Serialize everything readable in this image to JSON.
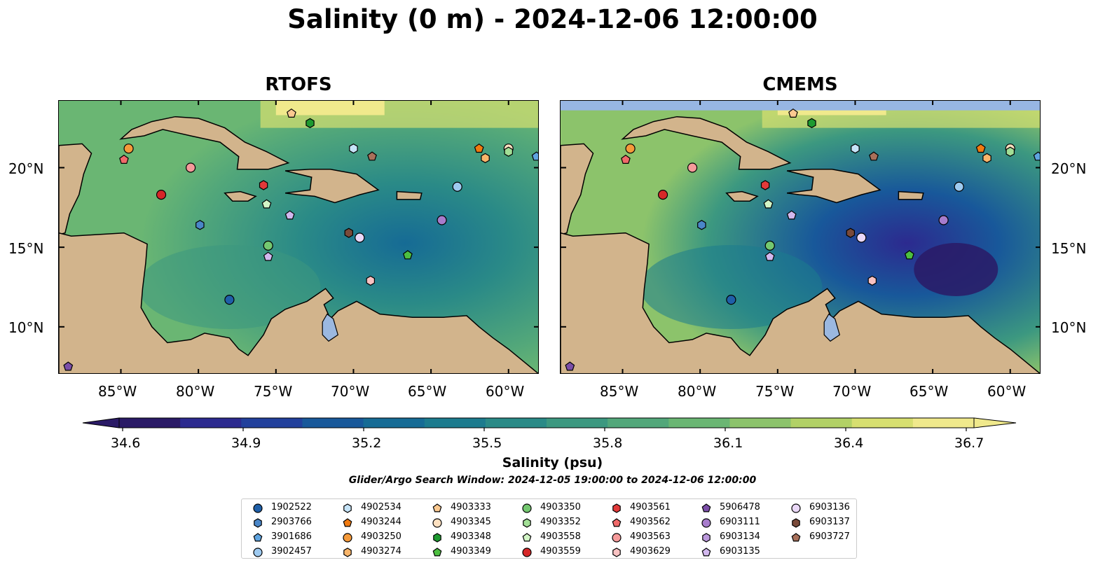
{
  "title": "Salinity (0 m) - 2024-12-06 12:00:00",
  "panels": [
    {
      "title": "RTOFS",
      "dark_region": "east"
    },
    {
      "title": "CMEMS",
      "dark_region": "east"
    }
  ],
  "map": {
    "lon_range": [
      -89,
      -58
    ],
    "lat_range": [
      7,
      24.2
    ],
    "x_ticks": [
      "85°W",
      "80°W",
      "75°W",
      "70°W",
      "65°W",
      "60°W"
    ],
    "y_ticks": [
      "20°N",
      "15°N",
      "10°N"
    ],
    "land_color": "#d2b48c",
    "lake_color": "#9bb8e0"
  },
  "colorbar": {
    "ticks": [
      "34.6",
      "34.9",
      "35.2",
      "35.5",
      "35.8",
      "36.1",
      "36.4",
      "36.7"
    ],
    "label": "Salinity (psu)",
    "colors": [
      "#2a1a66",
      "#2c2a8f",
      "#22409c",
      "#18589a",
      "#166b95",
      "#1c7b8e",
      "#2a8a87",
      "#3c9880",
      "#52a77a",
      "#6ab673",
      "#8cc36b",
      "#b2d166",
      "#d7df70",
      "#f0e98c"
    ]
  },
  "window_text": "Glider/Argo Search Window: 2024-12-05 19:00:00 to 2024-12-06 12:00:00",
  "legend": [
    {
      "id": "1902522",
      "shape": "circle",
      "color": "#1f5fa8"
    },
    {
      "id": "2903766",
      "shape": "hexagon",
      "color": "#4a86c8"
    },
    {
      "id": "3901686",
      "shape": "pentagon",
      "color": "#5fa4e0"
    },
    {
      "id": "3902457",
      "shape": "circle",
      "color": "#9ecaf0"
    },
    {
      "id": "4902534",
      "shape": "hexagon",
      "color": "#c6e4f8"
    },
    {
      "id": "4903244",
      "shape": "pentagon",
      "color": "#f07a10"
    },
    {
      "id": "4903250",
      "shape": "circle",
      "color": "#f59a3a"
    },
    {
      "id": "4903274",
      "shape": "hexagon",
      "color": "#f8b56a"
    },
    {
      "id": "4903333",
      "shape": "pentagon",
      "color": "#fbc990"
    },
    {
      "id": "4903345",
      "shape": "circle",
      "color": "#fde0c0"
    },
    {
      "id": "4903348",
      "shape": "hexagon",
      "color": "#1e9a30"
    },
    {
      "id": "4903349",
      "shape": "pentagon",
      "color": "#4cbf40"
    },
    {
      "id": "4903350",
      "shape": "circle",
      "color": "#74c870"
    },
    {
      "id": "4903352",
      "shape": "hexagon",
      "color": "#a2df96"
    },
    {
      "id": "4903558",
      "shape": "pentagon",
      "color": "#d2f5c6"
    },
    {
      "id": "4903559",
      "shape": "circle",
      "color": "#d62728"
    },
    {
      "id": "4903561",
      "shape": "hexagon",
      "color": "#e23a3a"
    },
    {
      "id": "4903562",
      "shape": "pentagon",
      "color": "#f06a6a"
    },
    {
      "id": "4903563",
      "shape": "circle",
      "color": "#f59a9a"
    },
    {
      "id": "4903629",
      "shape": "hexagon",
      "color": "#f8c2c2"
    },
    {
      "id": "5906478",
      "shape": "pentagon",
      "color": "#7b4ea8"
    },
    {
      "id": "6903111",
      "shape": "circle",
      "color": "#a77ccc"
    },
    {
      "id": "6903134",
      "shape": "hexagon",
      "color": "#bb98dc"
    },
    {
      "id": "6903135",
      "shape": "pentagon",
      "color": "#d2b8ee"
    },
    {
      "id": "6903136",
      "shape": "circle",
      "color": "#ead8f8"
    },
    {
      "id": "6903137",
      "shape": "hexagon",
      "color": "#7a4a3a"
    },
    {
      "id": "6903727",
      "shape": "pentagon",
      "color": "#a8705a"
    }
  ],
  "floats": [
    {
      "lon": -84.5,
      "lat": 21.2,
      "shape": "circle",
      "color": "#f59a3a"
    },
    {
      "lon": -84.8,
      "lat": 20.5,
      "shape": "pentagon",
      "color": "#f06a6a"
    },
    {
      "lon": -80.5,
      "lat": 20.0,
      "shape": "circle",
      "color": "#f59a9a"
    },
    {
      "lon": -82.4,
      "lat": 18.3,
      "shape": "circle",
      "color": "#d62728"
    },
    {
      "lon": -79.9,
      "lat": 16.4,
      "shape": "hexagon",
      "color": "#4a86c8"
    },
    {
      "lon": -78.0,
      "lat": 11.7,
      "shape": "circle",
      "color": "#1f5fa8"
    },
    {
      "lon": -74.0,
      "lat": 23.4,
      "shape": "pentagon",
      "color": "#fbc990"
    },
    {
      "lon": -72.8,
      "lat": 22.8,
      "shape": "hexagon",
      "color": "#1e9a30"
    },
    {
      "lon": -70.0,
      "lat": 21.2,
      "shape": "hexagon",
      "color": "#c6e4f8"
    },
    {
      "lon": -68.8,
      "lat": 20.7,
      "shape": "pentagon",
      "color": "#a8705a"
    },
    {
      "lon": -75.8,
      "lat": 18.9,
      "shape": "hexagon",
      "color": "#e23a3a"
    },
    {
      "lon": -75.6,
      "lat": 17.7,
      "shape": "pentagon",
      "color": "#d2f5c6"
    },
    {
      "lon": -74.1,
      "lat": 17.0,
      "shape": "pentagon",
      "color": "#d2b8ee"
    },
    {
      "lon": -75.5,
      "lat": 15.1,
      "shape": "circle",
      "color": "#74c870"
    },
    {
      "lon": -75.5,
      "lat": 14.4,
      "shape": "pentagon",
      "color": "#d2b8ee"
    },
    {
      "lon": -70.3,
      "lat": 15.9,
      "shape": "hexagon",
      "color": "#7a4a3a"
    },
    {
      "lon": -69.6,
      "lat": 15.6,
      "shape": "circle",
      "color": "#ead8f8"
    },
    {
      "lon": -68.9,
      "lat": 12.9,
      "shape": "hexagon",
      "color": "#f8c2c2"
    },
    {
      "lon": -66.5,
      "lat": 14.5,
      "shape": "pentagon",
      "color": "#4cbf40"
    },
    {
      "lon": -64.3,
      "lat": 16.7,
      "shape": "circle",
      "color": "#a77ccc"
    },
    {
      "lon": -63.3,
      "lat": 18.8,
      "shape": "circle",
      "color": "#9ecaf0"
    },
    {
      "lon": -61.9,
      "lat": 21.2,
      "shape": "pentagon",
      "color": "#f07a10"
    },
    {
      "lon": -61.5,
      "lat": 20.6,
      "shape": "hexagon",
      "color": "#f8b56a"
    },
    {
      "lon": -60.0,
      "lat": 21.2,
      "shape": "circle",
      "color": "#fde0c0"
    },
    {
      "lon": -60.0,
      "lat": 21.0,
      "shape": "hexagon",
      "color": "#a2df96"
    },
    {
      "lon": -58.2,
      "lat": 20.7,
      "shape": "pentagon",
      "color": "#5fa4e0"
    },
    {
      "lon": -88.4,
      "lat": 7.5,
      "shape": "pentagon",
      "color": "#7b4ea8"
    }
  ]
}
